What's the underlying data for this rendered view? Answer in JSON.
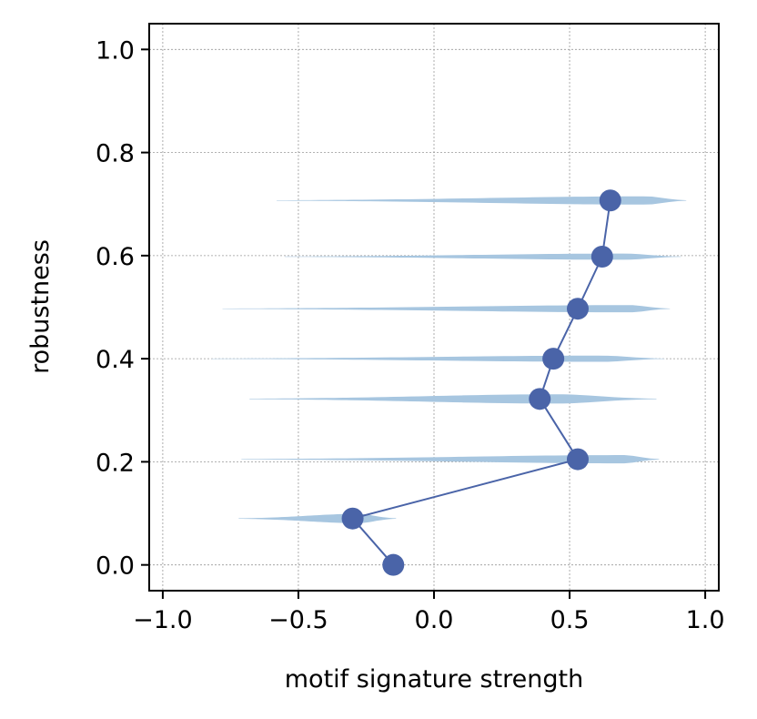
{
  "chart_data": {
    "type": "line",
    "title": "",
    "xlabel": "motif signature strength",
    "ylabel": "robustness",
    "xlim": [
      -1.05,
      1.05
    ],
    "ylim": [
      -0.05,
      1.05
    ],
    "xticks": [
      -1.0,
      -0.5,
      0.0,
      0.5,
      1.0
    ],
    "xtick_labels": [
      "−1.0",
      "−0.5",
      "0.0",
      "0.5",
      "1.0"
    ],
    "yticks": [
      0.0,
      0.2,
      0.4,
      0.6,
      0.8,
      1.0
    ],
    "ytick_labels": [
      "0.0",
      "0.2",
      "0.4",
      "0.6",
      "0.8",
      "1.0"
    ],
    "grid": true,
    "colors": {
      "line": "#4a64a8",
      "violin": "#a7c6e0",
      "grid": "#999999"
    },
    "series": [
      {
        "points": [
          {
            "x": -0.15,
            "y": 0.0
          },
          {
            "x": -0.3,
            "y": 0.09
          },
          {
            "x": 0.53,
            "y": 0.205
          },
          {
            "x": 0.39,
            "y": 0.322
          },
          {
            "x": 0.44,
            "y": 0.4
          },
          {
            "x": 0.53,
            "y": 0.497
          },
          {
            "x": 0.62,
            "y": 0.598
          },
          {
            "x": 0.65,
            "y": 0.707
          }
        ]
      }
    ],
    "violins": [
      {
        "y": 0.09,
        "min": -0.72,
        "max": -0.14,
        "peak": -0.28,
        "thickness": 0.009
      },
      {
        "y": 0.205,
        "min": -0.71,
        "max": 0.83,
        "peak": 0.7,
        "thickness": 0.008
      },
      {
        "y": 0.322,
        "min": -0.68,
        "max": 0.82,
        "peak": 0.45,
        "thickness": 0.009
      },
      {
        "y": 0.4,
        "min": -0.82,
        "max": 0.85,
        "peak": 0.62,
        "thickness": 0.006
      },
      {
        "y": 0.497,
        "min": -0.78,
        "max": 0.87,
        "peak": 0.72,
        "thickness": 0.007
      },
      {
        "y": 0.598,
        "min": -0.55,
        "max": 0.91,
        "peak": 0.7,
        "thickness": 0.006
      },
      {
        "y": 0.707,
        "min": -0.58,
        "max": 0.93,
        "peak": 0.78,
        "thickness": 0.008
      }
    ]
  }
}
